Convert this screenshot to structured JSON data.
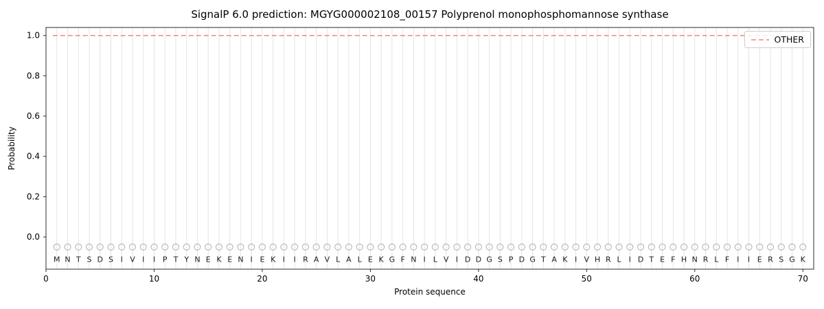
{
  "chart_data": {
    "type": "line",
    "title": "SignalP 6.0 prediction: MGYG000002108_00157 Polyprenol monophosphomannose synthase",
    "xlabel": "Protein sequence",
    "ylabel": "Probability",
    "xlim": [
      0,
      71
    ],
    "ylim": [
      -0.16,
      1.04
    ],
    "xticks": [
      0,
      10,
      20,
      30,
      40,
      50,
      60,
      70
    ],
    "yticks": [
      0.0,
      0.2,
      0.4,
      0.6,
      0.8,
      1.0
    ],
    "grid": "vertical line at every residue position",
    "legend": {
      "position": "upper right",
      "entries": [
        {
          "label": "OTHER",
          "style": "dashed",
          "color": "#f98080"
        }
      ]
    },
    "series": [
      {
        "name": "OTHER",
        "style": "dashed",
        "color": "#f98080",
        "x_start": 1,
        "x_end": 70,
        "y_constant": 1.0
      }
    ],
    "sequence": [
      "M",
      "N",
      "T",
      "S",
      "D",
      "S",
      "I",
      "V",
      "I",
      "I",
      "P",
      "T",
      "Y",
      "N",
      "E",
      "K",
      "E",
      "N",
      "I",
      "E",
      "K",
      "I",
      "I",
      "R",
      "A",
      "V",
      "L",
      "A",
      "L",
      "E",
      "K",
      "G",
      "F",
      "N",
      "I",
      "L",
      "V",
      "I",
      "D",
      "D",
      "G",
      "S",
      "P",
      "D",
      "G",
      "T",
      "A",
      "K",
      "I",
      "V",
      "H",
      "R",
      "L",
      "I",
      "D",
      "T",
      "E",
      "F",
      "H",
      "N",
      "R",
      "L",
      "F",
      "I",
      "I",
      "E",
      "R",
      "S",
      "G",
      "K"
    ],
    "marker_y": -0.05,
    "letter_y": -0.11,
    "colors": {
      "dashed_line": "#f98080",
      "grid": "#e4e4e4",
      "marker": "#b5b5b5",
      "letter": "#1a1a1a",
      "spine": "#2b2b2b",
      "tick_label": "#000000"
    }
  }
}
